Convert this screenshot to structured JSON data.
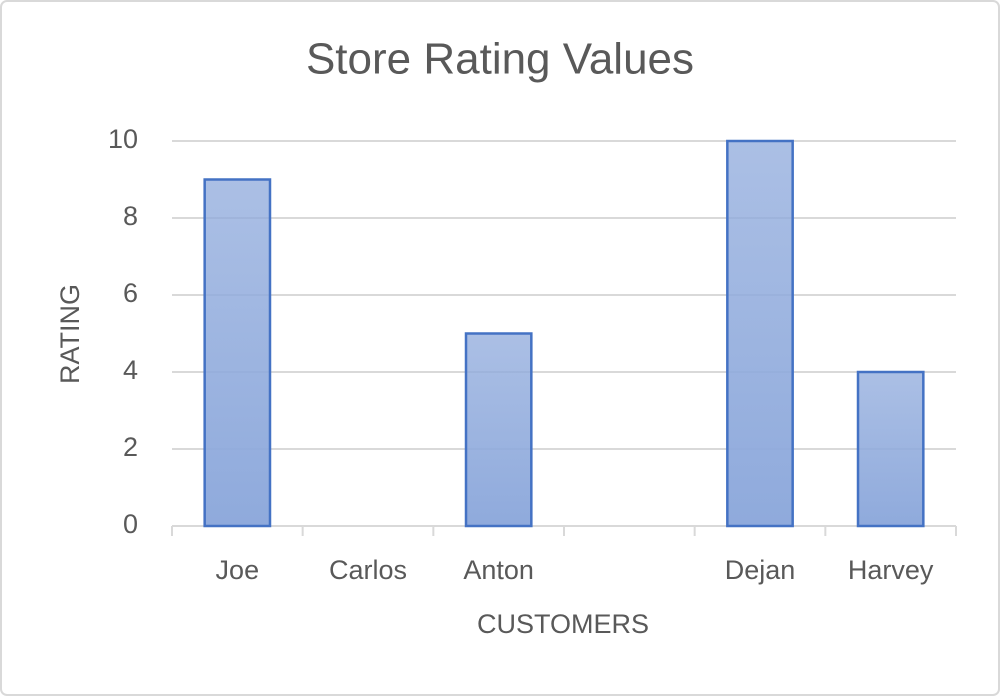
{
  "chart_data": {
    "type": "bar",
    "title": "Store Rating Values",
    "x_label": "CUSTOMERS",
    "y_label": "RATING",
    "categories": [
      "Joe",
      "Carlos",
      "Anton",
      null,
      "Dejan",
      "Harvey"
    ],
    "values": [
      9,
      null,
      5,
      null,
      10,
      4
    ],
    "color": "#8faadc",
    "edge_color": "#4472c4",
    "ylim": [
      0,
      10
    ],
    "yticks": [
      0,
      2,
      4,
      6,
      8,
      10
    ],
    "grid": true
  }
}
